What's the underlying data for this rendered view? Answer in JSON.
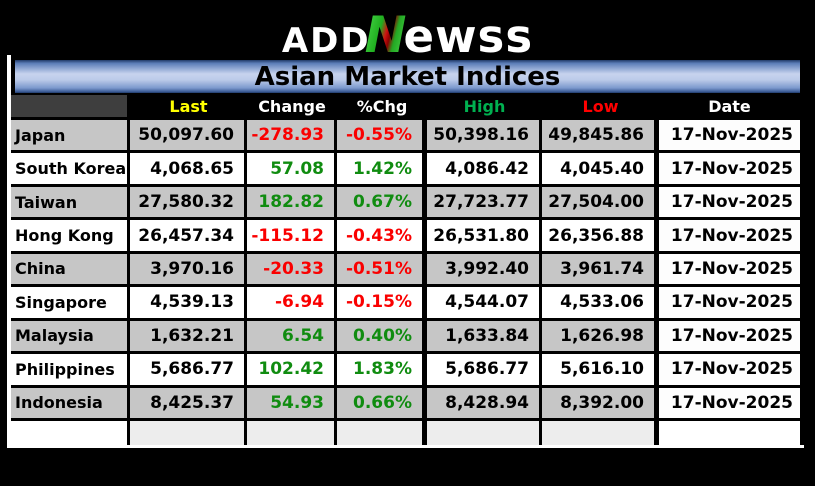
{
  "logo": {
    "part1": "ADD",
    "part2": "N",
    "part3": "ewss"
  },
  "title": "Asian Market Indices",
  "table": {
    "columns": [
      {
        "key": "name",
        "label": "",
        "color": "#ffffff"
      },
      {
        "key": "last",
        "label": "Last",
        "color": "#ffff00"
      },
      {
        "key": "change",
        "label": "Change",
        "color": "#ffffff"
      },
      {
        "key": "pchg",
        "label": "%Chg",
        "color": "#ffffff"
      },
      {
        "key": "high",
        "label": "High",
        "color": "#00b050"
      },
      {
        "key": "low",
        "label": "Low",
        "color": "#ff0000"
      },
      {
        "key": "date",
        "label": "Date",
        "color": "#ffffff"
      }
    ],
    "rows": [
      {
        "name": "Japan",
        "last": "50,097.60",
        "change": "-278.93",
        "pchg": "-0.55%",
        "high": "50,398.16",
        "low": "49,845.86",
        "date": "17-Nov-2025",
        "direction": "down"
      },
      {
        "name": "South Korea",
        "last": "4,068.65",
        "change": "57.08",
        "pchg": "1.42%",
        "high": "4,086.42",
        "low": "4,045.40",
        "date": "17-Nov-2025",
        "direction": "up"
      },
      {
        "name": "Taiwan",
        "last": "27,580.32",
        "change": "182.82",
        "pchg": "0.67%",
        "high": "27,723.77",
        "low": "27,504.00",
        "date": "17-Nov-2025",
        "direction": "up"
      },
      {
        "name": "Hong Kong",
        "last": "26,457.34",
        "change": "-115.12",
        "pchg": "-0.43%",
        "high": "26,531.80",
        "low": "26,356.88",
        "date": "17-Nov-2025",
        "direction": "down"
      },
      {
        "name": "China",
        "last": "3,970.16",
        "change": "-20.33",
        "pchg": "-0.51%",
        "high": "3,992.40",
        "low": "3,961.74",
        "date": "17-Nov-2025",
        "direction": "down"
      },
      {
        "name": "Singapore",
        "last": "4,539.13",
        "change": "-6.94",
        "pchg": "-0.15%",
        "high": "4,544.07",
        "low": "4,533.06",
        "date": "17-Nov-2025",
        "direction": "down"
      },
      {
        "name": "Malaysia",
        "last": "1,632.21",
        "change": "6.54",
        "pchg": "0.40%",
        "high": "1,633.84",
        "low": "1,626.98",
        "date": "17-Nov-2025",
        "direction": "up"
      },
      {
        "name": "Philippines",
        "last": "5,686.77",
        "change": "102.42",
        "pchg": "1.83%",
        "high": "5,686.77",
        "low": "5,616.10",
        "date": "17-Nov-2025",
        "direction": "up"
      },
      {
        "name": "Indonesia",
        "last": "8,425.37",
        "change": "54.93",
        "pchg": "0.66%",
        "high": "8,428.94",
        "low": "8,392.00",
        "date": "17-Nov-2025",
        "direction": "up"
      }
    ],
    "has_empty_bottom_row": true
  },
  "colors": {
    "background": "#000000",
    "title_bar_blue_light": "#c7d3ee",
    "title_bar_blue_dark": "#203a68",
    "row_gray": "#c6c6c6",
    "row_white": "#ffffff",
    "positive_green": "#108c10",
    "negative_red": "#fa0000",
    "header_last_yellow": "#ffff00",
    "header_high_green": "#00b050",
    "header_low_red": "#ff0000",
    "header_cell_dark": "#3e3e3e",
    "logo_green": "#1fae1f",
    "logo_red": "#8b0000"
  }
}
